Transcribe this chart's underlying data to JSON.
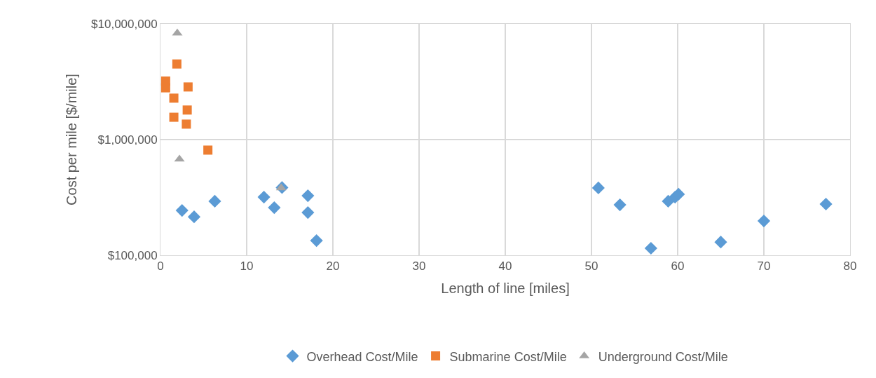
{
  "chart_data": {
    "type": "scatter",
    "xlabel": "Length of line [miles]",
    "ylabel": "Cost per mile [$/mile]",
    "log": "y",
    "grid": true,
    "legend": "bottom",
    "xlim": [
      0,
      80
    ],
    "xticks": [
      0,
      10,
      20,
      30,
      40,
      50,
      60,
      70,
      80
    ],
    "ylim": [
      100000,
      10000000
    ],
    "yticks": [
      {
        "value": 100000,
        "label": "$100,000"
      },
      {
        "value": 1000000,
        "label": "$1,000,000"
      },
      {
        "value": 10000000,
        "label": "$10,000,000"
      }
    ],
    "series": [
      {
        "name": "Overhead Cost/Mile",
        "color": "#5b9bd5",
        "marker": "diamond",
        "x": [
          2.5,
          3.9,
          6.3,
          12.0,
          13.2,
          14.1,
          17.1,
          17.1,
          18.1,
          50.8,
          53.3,
          56.9,
          58.9,
          59.7,
          60.1,
          65.0,
          70.0,
          77.2
        ],
        "values": [
          244000,
          215000,
          293000,
          318000,
          258000,
          385000,
          327000,
          234000,
          134000,
          382000,
          273000,
          115000,
          293000,
          318000,
          337000,
          130000,
          198000,
          277000
        ]
      },
      {
        "name": "Submarine Cost/Mile",
        "color": "#ed7d31",
        "marker": "square",
        "x": [
          1.9,
          0.6,
          0.6,
          3.2,
          1.55,
          3.1,
          1.55,
          3.0,
          5.5
        ],
        "values": [
          4500000,
          3200000,
          2800000,
          2850000,
          2280000,
          1800000,
          1560000,
          1360000,
          811000
        ]
      },
      {
        "name": "Underground Cost/Mile",
        "color": "#a5a5a5",
        "marker": "triangle",
        "x": [
          1.95,
          2.2,
          14.0
        ],
        "values": [
          8300000,
          676000,
          382000
        ]
      }
    ]
  }
}
